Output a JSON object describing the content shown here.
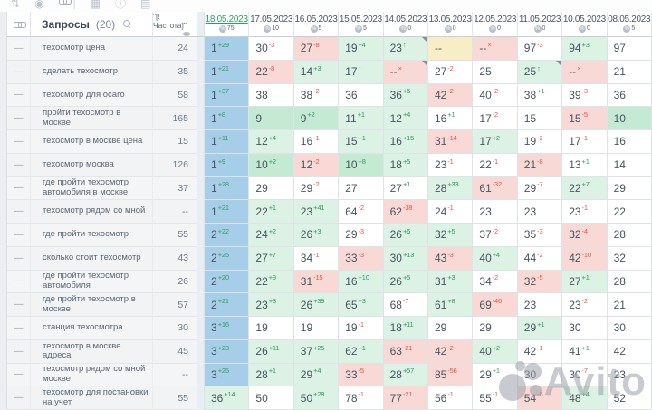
{
  "toolbar": {
    "icons": [
      {
        "name": "sort-icon",
        "glyph": "⇅"
      },
      {
        "name": "target-icon",
        "glyph": "◉"
      },
      {
        "name": "link-icon",
        "glyph": "chain"
      },
      {
        "name": "separator",
        "glyph": "|"
      },
      {
        "name": "table-icon",
        "glyph": "▦"
      },
      {
        "name": "info-icon",
        "glyph": "ⓘ"
      },
      {
        "name": "export-icon",
        "glyph": "▤"
      }
    ]
  },
  "query_panel": {
    "title": "Запросы",
    "count": "(20)",
    "freq_header": "\"[!Частота]\""
  },
  "dates": [
    {
      "label": "18.05.2023",
      "badge": "75",
      "active": true
    },
    {
      "label": "17.05.2023",
      "badge": "10",
      "active": false
    },
    {
      "label": "16.05.2023",
      "badge": "5",
      "active": false
    },
    {
      "label": "15.05.2023",
      "badge": "5",
      "active": false
    },
    {
      "label": "14.05.2023",
      "badge": "0",
      "active": false
    },
    {
      "label": "13.05.2023",
      "badge": "0",
      "active": false
    },
    {
      "label": "12.05.2023",
      "badge": "0",
      "active": false
    },
    {
      "label": "11.05.2023",
      "badge": "0",
      "active": false
    },
    {
      "label": "10.05.2023",
      "badge": "0",
      "active": false
    },
    {
      "label": "08.05.2023",
      "badge": "5",
      "active": false
    }
  ],
  "legend": {
    "bg_codes": "b=top3-blue, G=top10-green, g=improved-light-green, r=worsened-pink, y=out-of-index-yellow, w=neutral-white",
    "delta_marks": "↑=returned to index, ×=dropped from index"
  },
  "rows": [
    {
      "query": "техосмотр цена",
      "freq": "24",
      "cells": [
        {
          "pos": "1",
          "delta": "+29",
          "bg": "b"
        },
        {
          "pos": "30",
          "delta": "-3",
          "bg": "w"
        },
        {
          "pos": "27",
          "delta": "-8",
          "bg": "r"
        },
        {
          "pos": "19",
          "delta": "+4",
          "bg": "g"
        },
        {
          "pos": "23",
          "delta": "↑",
          "bg": "g",
          "fold": true
        },
        {
          "pos": "--",
          "delta": "",
          "bg": "y"
        },
        {
          "pos": "--",
          "delta": "×",
          "bg": "r"
        },
        {
          "pos": "97",
          "delta": "-3",
          "bg": "w"
        },
        {
          "pos": "94",
          "delta": "+3",
          "bg": "g"
        },
        {
          "pos": "97",
          "delta": "",
          "bg": "w"
        }
      ]
    },
    {
      "query": "сделать техосмотр",
      "freq": "35",
      "cells": [
        {
          "pos": "1",
          "delta": "+21",
          "bg": "b"
        },
        {
          "pos": "22",
          "delta": "-8",
          "bg": "r"
        },
        {
          "pos": "14",
          "delta": "+3",
          "bg": "g"
        },
        {
          "pos": "17",
          "delta": "↑",
          "bg": "g"
        },
        {
          "pos": "--",
          "delta": "×",
          "bg": "r",
          "fold": true
        },
        {
          "pos": "27",
          "delta": "-2",
          "bg": "w"
        },
        {
          "pos": "25",
          "delta": "",
          "bg": "w"
        },
        {
          "pos": "25",
          "delta": "↑",
          "bg": "g",
          "fold": true
        },
        {
          "pos": "--",
          "delta": "×",
          "bg": "r"
        },
        {
          "pos": "21",
          "delta": "",
          "bg": "w"
        }
      ]
    },
    {
      "query": "техосмотр для осаго",
      "freq": "58",
      "cells": [
        {
          "pos": "1",
          "delta": "+37",
          "bg": "b"
        },
        {
          "pos": "38",
          "delta": "",
          "bg": "w"
        },
        {
          "pos": "38",
          "delta": "-2",
          "bg": "w"
        },
        {
          "pos": "36",
          "delta": "",
          "bg": "w"
        },
        {
          "pos": "36",
          "delta": "+6",
          "bg": "g"
        },
        {
          "pos": "42",
          "delta": "-2",
          "bg": "r"
        },
        {
          "pos": "40",
          "delta": "-2",
          "bg": "w"
        },
        {
          "pos": "38",
          "delta": "+1",
          "bg": "w"
        },
        {
          "pos": "39",
          "delta": "-3",
          "bg": "w"
        },
        {
          "pos": "36",
          "delta": "",
          "bg": "w"
        }
      ]
    },
    {
      "query": "пройти техосмотр в москве",
      "freq": "165",
      "cells": [
        {
          "pos": "1",
          "delta": "+8",
          "bg": "b"
        },
        {
          "pos": "9",
          "delta": "",
          "bg": "G"
        },
        {
          "pos": "9",
          "delta": "+2",
          "bg": "G"
        },
        {
          "pos": "11",
          "delta": "+1",
          "bg": "g"
        },
        {
          "pos": "12",
          "delta": "+4",
          "bg": "g"
        },
        {
          "pos": "16",
          "delta": "+1",
          "bg": "w"
        },
        {
          "pos": "17",
          "delta": "-2",
          "bg": "w"
        },
        {
          "pos": "15",
          "delta": "",
          "bg": "w"
        },
        {
          "pos": "15",
          "delta": "-5",
          "bg": "r"
        },
        {
          "pos": "10",
          "delta": "",
          "bg": "G"
        }
      ]
    },
    {
      "query": "техосмотр в москве цена",
      "freq": "15",
      "cells": [
        {
          "pos": "1",
          "delta": "+11",
          "bg": "b"
        },
        {
          "pos": "12",
          "delta": "+4",
          "bg": "g"
        },
        {
          "pos": "16",
          "delta": "-1",
          "bg": "w"
        },
        {
          "pos": "15",
          "delta": "+1",
          "bg": "g"
        },
        {
          "pos": "16",
          "delta": "+15",
          "bg": "g"
        },
        {
          "pos": "31",
          "delta": "-14",
          "bg": "r"
        },
        {
          "pos": "17",
          "delta": "+2",
          "bg": "g"
        },
        {
          "pos": "19",
          "delta": "-2",
          "bg": "w"
        },
        {
          "pos": "17",
          "delta": "-1",
          "bg": "w"
        },
        {
          "pos": "16",
          "delta": "",
          "bg": "w"
        }
      ]
    },
    {
      "query": "техосмотр москва",
      "freq": "126",
      "cells": [
        {
          "pos": "1",
          "delta": "+9",
          "bg": "b"
        },
        {
          "pos": "10",
          "delta": "+2",
          "bg": "G"
        },
        {
          "pos": "12",
          "delta": "-2",
          "bg": "r"
        },
        {
          "pos": "10",
          "delta": "+8",
          "bg": "G"
        },
        {
          "pos": "18",
          "delta": "+5",
          "bg": "g"
        },
        {
          "pos": "23",
          "delta": "-1",
          "bg": "w"
        },
        {
          "pos": "22",
          "delta": "-1",
          "bg": "w"
        },
        {
          "pos": "21",
          "delta": "-8",
          "bg": "r"
        },
        {
          "pos": "13",
          "delta": "+1",
          "bg": "w"
        },
        {
          "pos": "14",
          "delta": "",
          "bg": "w"
        }
      ]
    },
    {
      "query": "где пройти техосмотр автомобиля в москве",
      "freq": "37",
      "cells": [
        {
          "pos": "1",
          "delta": "+28",
          "bg": "b"
        },
        {
          "pos": "29",
          "delta": "",
          "bg": "w"
        },
        {
          "pos": "29",
          "delta": "-2",
          "bg": "w"
        },
        {
          "pos": "27",
          "delta": "",
          "bg": "w"
        },
        {
          "pos": "27",
          "delta": "+1",
          "bg": "w"
        },
        {
          "pos": "28",
          "delta": "+33",
          "bg": "g"
        },
        {
          "pos": "61",
          "delta": "-32",
          "bg": "r"
        },
        {
          "pos": "29",
          "delta": "-7",
          "bg": "w"
        },
        {
          "pos": "22",
          "delta": "+7",
          "bg": "g"
        },
        {
          "pos": "29",
          "delta": "",
          "bg": "w"
        }
      ]
    },
    {
      "query": "техосмотр рядом со мной",
      "freq": "--",
      "cells": [
        {
          "pos": "1",
          "delta": "+21",
          "bg": "b"
        },
        {
          "pos": "22",
          "delta": "+1",
          "bg": "g"
        },
        {
          "pos": "23",
          "delta": "+41",
          "bg": "g"
        },
        {
          "pos": "64",
          "delta": "-2",
          "bg": "w"
        },
        {
          "pos": "62",
          "delta": "-38",
          "bg": "r"
        },
        {
          "pos": "24",
          "delta": "-1",
          "bg": "w"
        },
        {
          "pos": "23",
          "delta": "",
          "bg": "w"
        },
        {
          "pos": "23",
          "delta": "",
          "bg": "w"
        },
        {
          "pos": "23",
          "delta": "-1",
          "bg": "w"
        },
        {
          "pos": "22",
          "delta": "",
          "bg": "w"
        }
      ]
    },
    {
      "query": "где пройти техосмотр",
      "freq": "55",
      "cells": [
        {
          "pos": "2",
          "delta": "+22",
          "bg": "b"
        },
        {
          "pos": "24",
          "delta": "+2",
          "bg": "g"
        },
        {
          "pos": "26",
          "delta": "+3",
          "bg": "g"
        },
        {
          "pos": "29",
          "delta": "-3",
          "bg": "w"
        },
        {
          "pos": "26",
          "delta": "+6",
          "bg": "g"
        },
        {
          "pos": "32",
          "delta": "+5",
          "bg": "g"
        },
        {
          "pos": "37",
          "delta": "-2",
          "bg": "w"
        },
        {
          "pos": "35",
          "delta": "-3",
          "bg": "w"
        },
        {
          "pos": "32",
          "delta": "-4",
          "bg": "r"
        },
        {
          "pos": "28",
          "delta": "",
          "bg": "w"
        }
      ]
    },
    {
      "query": "сколько стоит техосмотр",
      "freq": "43",
      "cells": [
        {
          "pos": "2",
          "delta": "+25",
          "bg": "b"
        },
        {
          "pos": "27",
          "delta": "+7",
          "bg": "g"
        },
        {
          "pos": "34",
          "delta": "-1",
          "bg": "w"
        },
        {
          "pos": "33",
          "delta": "-3",
          "bg": "r"
        },
        {
          "pos": "30",
          "delta": "+13",
          "bg": "g"
        },
        {
          "pos": "43",
          "delta": "-3",
          "bg": "r"
        },
        {
          "pos": "40",
          "delta": "+4",
          "bg": "g"
        },
        {
          "pos": "44",
          "delta": "-2",
          "bg": "w"
        },
        {
          "pos": "42",
          "delta": "-10",
          "bg": "r"
        },
        {
          "pos": "32",
          "delta": "",
          "bg": "w"
        }
      ]
    },
    {
      "query": "где пройти техосмотр автомобиля",
      "freq": "26",
      "cells": [
        {
          "pos": "2",
          "delta": "+20",
          "bg": "b"
        },
        {
          "pos": "22",
          "delta": "+9",
          "bg": "g"
        },
        {
          "pos": "31",
          "delta": "-15",
          "bg": "r"
        },
        {
          "pos": "16",
          "delta": "+10",
          "bg": "g"
        },
        {
          "pos": "26",
          "delta": "+5",
          "bg": "g"
        },
        {
          "pos": "31",
          "delta": "+3",
          "bg": "g"
        },
        {
          "pos": "34",
          "delta": "-2",
          "bg": "w"
        },
        {
          "pos": "32",
          "delta": "-5",
          "bg": "r"
        },
        {
          "pos": "27",
          "delta": "+1",
          "bg": "g"
        },
        {
          "pos": "28",
          "delta": "",
          "bg": "w"
        }
      ]
    },
    {
      "query": "где пройти техосмотр в москве",
      "freq": "57",
      "cells": [
        {
          "pos": "2",
          "delta": "+21",
          "bg": "b"
        },
        {
          "pos": "23",
          "delta": "+3",
          "bg": "g"
        },
        {
          "pos": "26",
          "delta": "+39",
          "bg": "g"
        },
        {
          "pos": "65",
          "delta": "+3",
          "bg": "g"
        },
        {
          "pos": "68",
          "delta": "-7",
          "bg": "w"
        },
        {
          "pos": "61",
          "delta": "+8",
          "bg": "g"
        },
        {
          "pos": "69",
          "delta": "-46",
          "bg": "r"
        },
        {
          "pos": "23",
          "delta": "",
          "bg": "w"
        },
        {
          "pos": "23",
          "delta": "-2",
          "bg": "w"
        },
        {
          "pos": "21",
          "delta": "",
          "bg": "w"
        }
      ]
    },
    {
      "query": "станция техосмотра",
      "freq": "30",
      "cells": [
        {
          "pos": "3",
          "delta": "+16",
          "bg": "b"
        },
        {
          "pos": "19",
          "delta": "",
          "bg": "w"
        },
        {
          "pos": "19",
          "delta": "",
          "bg": "w"
        },
        {
          "pos": "19",
          "delta": "-1",
          "bg": "w"
        },
        {
          "pos": "18",
          "delta": "+11",
          "bg": "g"
        },
        {
          "pos": "29",
          "delta": "",
          "bg": "w"
        },
        {
          "pos": "29",
          "delta": "",
          "bg": "w"
        },
        {
          "pos": "29",
          "delta": "+1",
          "bg": "g"
        },
        {
          "pos": "30",
          "delta": "",
          "bg": "w"
        },
        {
          "pos": "30",
          "delta": "",
          "bg": "w"
        }
      ]
    },
    {
      "query": "техосмотр в москве адреса",
      "freq": "45",
      "cells": [
        {
          "pos": "3",
          "delta": "+23",
          "bg": "b"
        },
        {
          "pos": "26",
          "delta": "+11",
          "bg": "g"
        },
        {
          "pos": "37",
          "delta": "+25",
          "bg": "g"
        },
        {
          "pos": "62",
          "delta": "+1",
          "bg": "g"
        },
        {
          "pos": "63",
          "delta": "-21",
          "bg": "r"
        },
        {
          "pos": "42",
          "delta": "-2",
          "bg": "r"
        },
        {
          "pos": "40",
          "delta": "+2",
          "bg": "g"
        },
        {
          "pos": "42",
          "delta": "-1",
          "bg": "w"
        },
        {
          "pos": "41",
          "delta": "+1",
          "bg": "w"
        },
        {
          "pos": "42",
          "delta": "",
          "bg": "w"
        }
      ]
    },
    {
      "query": "техосмотр рядом со мной москве",
      "freq": "--",
      "cells": [
        {
          "pos": "3",
          "delta": "+25",
          "bg": "b"
        },
        {
          "pos": "28",
          "delta": "+1",
          "bg": "g"
        },
        {
          "pos": "29",
          "delta": "+4",
          "bg": "g"
        },
        {
          "pos": "33",
          "delta": "-5",
          "bg": "r"
        },
        {
          "pos": "28",
          "delta": "+57",
          "bg": "g"
        },
        {
          "pos": "85",
          "delta": "-56",
          "bg": "r"
        },
        {
          "pos": "29",
          "delta": "+1",
          "bg": "w"
        },
        {
          "pos": "30",
          "delta": "",
          "bg": "w"
        },
        {
          "pos": "30",
          "delta": "-7",
          "bg": "w"
        },
        {
          "pos": "23",
          "delta": "",
          "bg": "w"
        }
      ]
    },
    {
      "query": "техосмотр для постановки на учет",
      "freq": "55",
      "cells": [
        {
          "pos": "36",
          "delta": "+14",
          "bg": "g"
        },
        {
          "pos": "50",
          "delta": "",
          "bg": "w"
        },
        {
          "pos": "50",
          "delta": "+28",
          "bg": "g"
        },
        {
          "pos": "78",
          "delta": "-1",
          "bg": "w"
        },
        {
          "pos": "77",
          "delta": "-21",
          "bg": "r"
        },
        {
          "pos": "56",
          "delta": "-1",
          "bg": "w"
        },
        {
          "pos": "55",
          "delta": "-1",
          "bg": "w"
        },
        {
          "pos": "54",
          "delta": "-6",
          "bg": "r"
        },
        {
          "pos": "48",
          "delta": "+4",
          "bg": "g"
        },
        {
          "pos": "52",
          "delta": "",
          "bg": "w"
        }
      ]
    }
  ],
  "watermark": {
    "text": "Avito"
  }
}
